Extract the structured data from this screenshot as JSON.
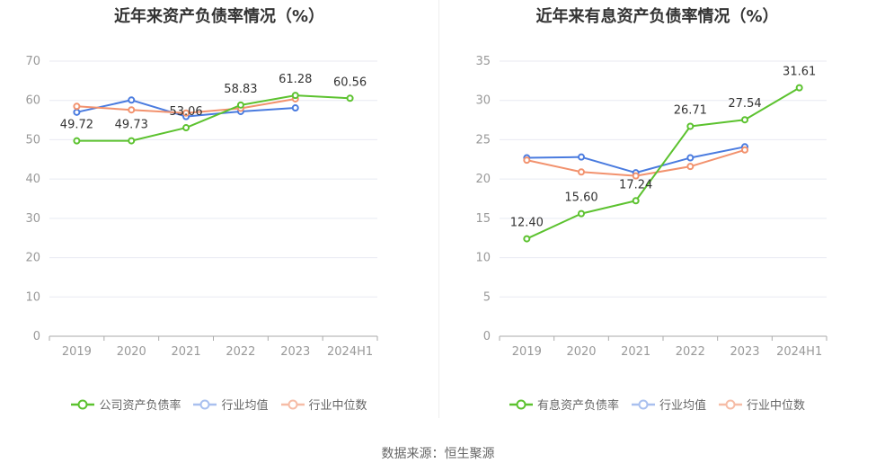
{
  "source": "数据来源：恒生聚源",
  "colors": {
    "company": "#5cc22f",
    "avg": "#4a7bdf",
    "median": "#f2926e",
    "grid": "#e8eaf2",
    "axis": "#999999",
    "label": "#333333"
  },
  "left": {
    "title": "近年来资产负债率情况（%）",
    "legend": [
      "公司资产负债率",
      "行业均值",
      "行业中位数"
    ]
  },
  "right": {
    "title": "近年来有息资产负债率情况（%）",
    "legend": [
      "有息资产负债率",
      "行业均值",
      "行业中位数"
    ]
  },
  "chart_data": [
    {
      "type": "line",
      "title": "近年来资产负债率情况（%）",
      "categories": [
        "2019",
        "2020",
        "2021",
        "2022",
        "2023",
        "2024H1"
      ],
      "ylim": [
        0,
        70
      ],
      "yticks": [
        0,
        10,
        20,
        30,
        40,
        50,
        60,
        70
      ],
      "grid": true,
      "legend_position": "bottom",
      "series": [
        {
          "name": "公司资产负债率",
          "color": "#5cc22f",
          "values": [
            49.72,
            49.73,
            53.06,
            58.83,
            61.28,
            60.56
          ],
          "labels": [
            "49.72",
            "49.73",
            "53.06",
            "58.83",
            "61.28",
            "60.56"
          ]
        },
        {
          "name": "行业均值",
          "color": "#4a7bdf",
          "values": [
            57.0,
            60.1,
            55.9,
            57.2,
            58.1,
            null
          ]
        },
        {
          "name": "行业中位数",
          "color": "#f2926e",
          "values": [
            58.5,
            57.6,
            56.8,
            58.0,
            60.4,
            null
          ]
        }
      ]
    },
    {
      "type": "line",
      "title": "近年来有息资产负债率情况（%）",
      "categories": [
        "2019",
        "2020",
        "2021",
        "2022",
        "2023",
        "2024H1"
      ],
      "ylim": [
        0,
        35
      ],
      "yticks": [
        0,
        5,
        10,
        15,
        20,
        25,
        30,
        35
      ],
      "grid": true,
      "legend_position": "bottom",
      "series": [
        {
          "name": "有息资产负债率",
          "color": "#5cc22f",
          "values": [
            12.4,
            15.6,
            17.24,
            26.71,
            27.54,
            31.61
          ],
          "labels": [
            "12.40",
            "15.60",
            "17.24",
            "26.71",
            "27.54",
            "31.61"
          ]
        },
        {
          "name": "行业均值",
          "color": "#4a7bdf",
          "values": [
            22.7,
            22.8,
            20.8,
            22.7,
            24.1,
            null
          ]
        },
        {
          "name": "行业中位数",
          "color": "#f2926e",
          "values": [
            22.4,
            20.9,
            20.4,
            21.6,
            23.7,
            null
          ]
        }
      ]
    }
  ]
}
